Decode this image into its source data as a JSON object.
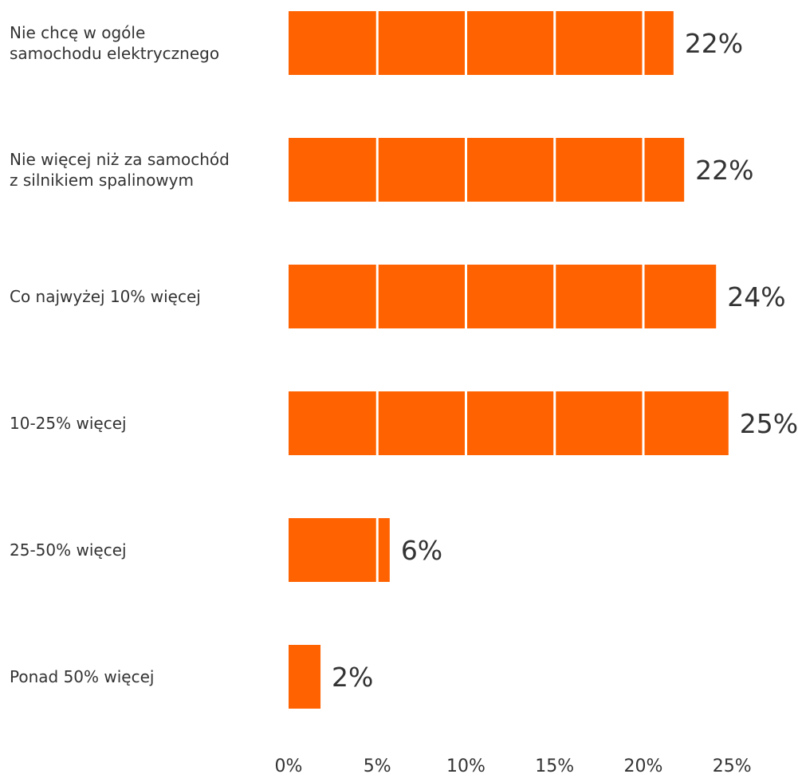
{
  "chart_data": {
    "type": "bar",
    "orientation": "horizontal",
    "categories": [
      [
        "Nie chcę w ogóle",
        "samochodu elektrycznego"
      ],
      [
        "Nie więcej niż za samochód",
        "z silnikiem spalinowym"
      ],
      [
        "Co najwyżej 10% więcej"
      ],
      [
        "10-25% więcej"
      ],
      [
        "25-50% więcej"
      ],
      [
        "Ponad 50% więcej"
      ]
    ],
    "values": [
      21.7,
      22.3,
      24.1,
      24.8,
      5.7,
      1.8
    ],
    "value_labels": [
      "22%",
      "22%",
      "24%",
      "25%",
      "6%",
      "2%"
    ],
    "x_ticks": [
      "0%",
      "5%",
      "10%",
      "15%",
      "20%",
      "25%"
    ],
    "xlim": [
      0,
      25
    ],
    "grid": "white vertical dividers at each 5% tick inside bars",
    "title": "",
    "xlabel": "",
    "ylabel": "",
    "bar_color": "#FF6200"
  }
}
